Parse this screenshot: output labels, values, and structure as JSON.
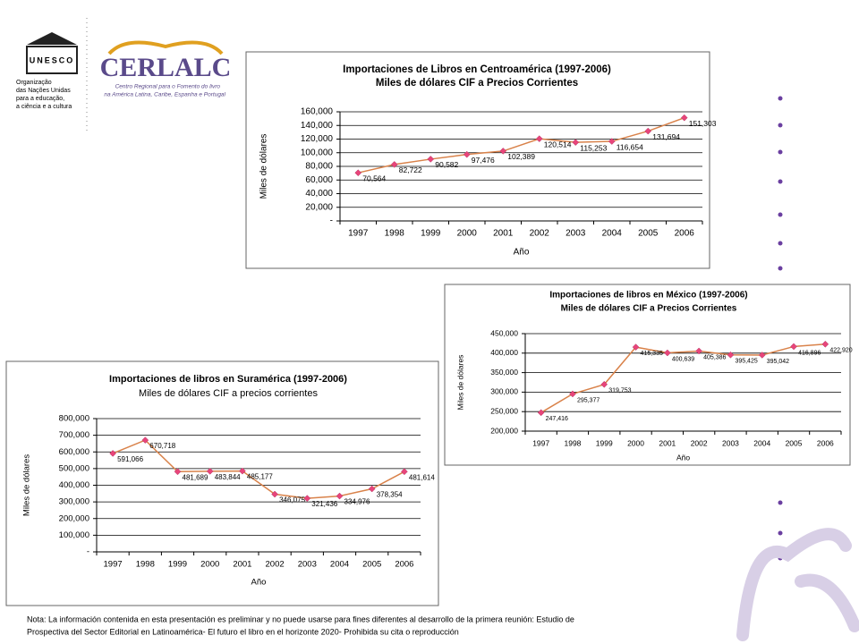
{
  "header": {
    "unesco_acronym": "UNESCO",
    "unesco_lines": [
      "Organização",
      "das Nações Unidas",
      "para a educação,",
      "a ciência e a cultura"
    ],
    "cerlalc_name": "CERLALC",
    "cerlalc_lines": [
      "Centro Regional para o Fomento do livro",
      "na América Latina, Caribe, Espanha e Portugal"
    ]
  },
  "chart_data": [
    {
      "type": "line",
      "title": "Importaciones de Libros en Centroamérica (1997-2006)",
      "subtitle": "Miles de dólares CIF  a Precios Corrientes",
      "x_label": "Año",
      "y_label": "Miles de dólares",
      "categories": [
        "1997",
        "1998",
        "1999",
        "2000",
        "2001",
        "2002",
        "2003",
        "2004",
        "2005",
        "2006"
      ],
      "values": [
        70564,
        82722,
        90582,
        97476,
        102389,
        120514,
        115253,
        116654,
        131694,
        151303
      ],
      "value_labels": [
        "70,564",
        "82,722",
        "90,582",
        "97,476",
        "102,389",
        "120,514",
        "115,253",
        "116,654",
        "131,694",
        "151,303"
      ],
      "color": "#d9824a",
      "marker_color": "#e8457a",
      "grid": true,
      "ylim": [
        0,
        160000
      ],
      "yticks": [
        {
          "value": 0,
          "label": "-"
        },
        {
          "value": 20000,
          "label": "20,000"
        },
        {
          "value": 40000,
          "label": "40,000"
        },
        {
          "value": 60000,
          "label": "60,000"
        },
        {
          "value": 80000,
          "label": "80,000"
        },
        {
          "value": 100000,
          "label": "100,000"
        },
        {
          "value": 120000,
          "label": "120,000"
        },
        {
          "value": 140000,
          "label": "140,000"
        },
        {
          "value": 160000,
          "label": "160,000"
        }
      ]
    },
    {
      "type": "line",
      "title": "Importaciones de libros en México (1997-2006)",
      "subtitle": "Miles de dólares CIF a Precios Corrientes",
      "x_label": "Año",
      "y_label": "Miles de dólares",
      "categories": [
        "1997",
        "1998",
        "1999",
        "2000",
        "2001",
        "2002",
        "2003",
        "2004",
        "2005",
        "2006"
      ],
      "values": [
        247416,
        295377,
        319753,
        415335,
        400639,
        405386,
        395425,
        395042,
        416896,
        422920
      ],
      "value_labels": [
        "247,416",
        "295,377",
        "319,753",
        "415,335",
        "400,639",
        "405,386",
        "395,425",
        "395,042",
        "416,896",
        "422,920"
      ],
      "color": "#d9824a",
      "marker_color": "#e8457a",
      "grid": true,
      "ylim": [
        200000,
        450000
      ],
      "yticks": [
        {
          "value": 200000,
          "label": "200,000"
        },
        {
          "value": 250000,
          "label": "250,000"
        },
        {
          "value": 300000,
          "label": "300,000"
        },
        {
          "value": 350000,
          "label": "350,000"
        },
        {
          "value": 400000,
          "label": "400,000"
        },
        {
          "value": 450000,
          "label": "450,000"
        }
      ]
    },
    {
      "type": "line",
      "title": "Importaciones de libros en Suramérica (1997-2006)",
      "subtitle": "Miles de dólares CIF a precios corrientes",
      "x_label": "Año",
      "y_label": "Miles de dólares",
      "categories": [
        "1997",
        "1998",
        "1999",
        "2000",
        "2001",
        "2002",
        "2003",
        "2004",
        "2005",
        "2006"
      ],
      "values": [
        591066,
        670718,
        481689,
        483844,
        485177,
        346075,
        321436,
        334976,
        378354,
        481614
      ],
      "value_labels": [
        "591,066",
        "670,718",
        "481,689",
        "483,844",
        "485,177",
        "346,075",
        "321,436",
        "334,976",
        "378,354",
        "481,614"
      ],
      "color": "#d9824a",
      "marker_color": "#e8457a",
      "grid": true,
      "ylim": [
        0,
        800000
      ],
      "yticks": [
        {
          "value": 0,
          "label": "-"
        },
        {
          "value": 100000,
          "label": "100,000"
        },
        {
          "value": 200000,
          "label": "200,000"
        },
        {
          "value": 300000,
          "label": "300,000"
        },
        {
          "value": 400000,
          "label": "400,000"
        },
        {
          "value": 500000,
          "label": "500,000"
        },
        {
          "value": 600000,
          "label": "600,000"
        },
        {
          "value": 700000,
          "label": "700,000"
        },
        {
          "value": 800000,
          "label": "800,000"
        }
      ]
    }
  ],
  "note": [
    "Nota: La información contenida en esta presentación es preliminar y no puede usarse para fines diferentes al desarrollo de la primera reunión: Estudio de",
    "Prospectiva del Sector Editorial en Latinoamérica- El futuro el libro en el horizonte 2020-  Prohibida su cita o reproducción"
  ]
}
